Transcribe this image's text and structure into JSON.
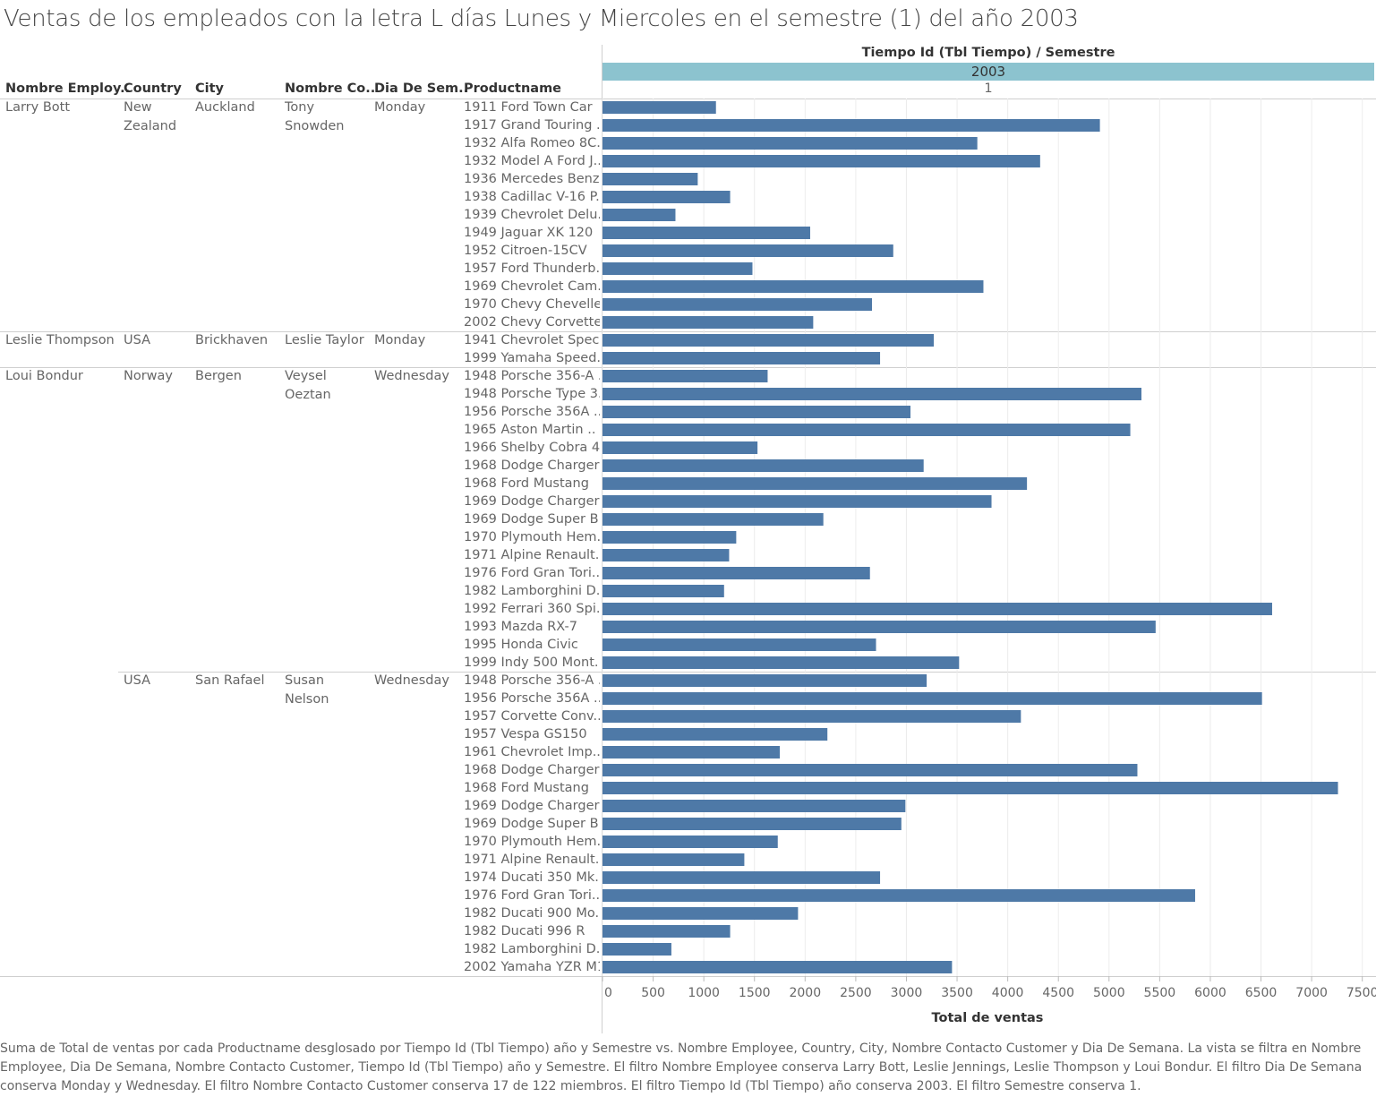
{
  "title": "Ventas de los empleados con la letra L días Lunes y Miercoles en el semestre (1) del año 2003",
  "headers": {
    "employee": "Nombre Employ..",
    "country": "Country",
    "city": "City",
    "contact": "Nombre Co..",
    "day": "Dia De Sem..",
    "product": "Productname",
    "column_field": "Tiempo Id (Tbl Tiempo)  /  Semestre",
    "year": "2003",
    "semester": "1"
  },
  "groups": [
    {
      "employee": "Larry Bott",
      "country": "New\nZealand",
      "city": "Auckland",
      "contact": "Tony\nSnowden",
      "day": "Monday"
    },
    {
      "employee": "Leslie Thompson",
      "country": "USA",
      "city": "Brickhaven",
      "contact": "Leslie Taylor",
      "day": "Monday"
    },
    {
      "employee": "Loui Bondur",
      "country": "Norway",
      "city": "Bergen",
      "contact": "Veysel\nOeztan",
      "day": "Wednesday"
    },
    {
      "employee": "",
      "country": "USA",
      "city": "San Rafael",
      "contact": "Susan\nNelson",
      "day": "Wednesday"
    }
  ],
  "chart_data": {
    "type": "bar",
    "orientation": "horizontal",
    "xlabel": "Total de ventas",
    "xlim": [
      0,
      7600
    ],
    "xticks": [
      0,
      500,
      1000,
      1500,
      2000,
      2500,
      3000,
      3500,
      4000,
      4500,
      5000,
      5500,
      6000,
      6500,
      7000,
      7500
    ],
    "grid": true,
    "bar_color": "#4e79a7",
    "categories": [
      "1911 Ford Town Car",
      "1917 Grand Touring ..",
      "1932 Alfa Romeo 8C..",
      "1932 Model A Ford J..",
      "1936 Mercedes Benz..",
      "1938 Cadillac V-16 P..",
      "1939 Chevrolet Delu..",
      "1949 Jaguar XK 120",
      "1952 Citroen-15CV",
      "1957 Ford Thunderb..",
      "1969 Chevrolet Cam..",
      "1970 Chevy Chevelle..",
      "2002 Chevy Corvette",
      "1941 Chevrolet Spec..",
      "1999 Yamaha Speed..",
      "1948 Porsche 356-A ..",
      "1948 Porsche Type 3..",
      "1956 Porsche 356A ..",
      "1965 Aston Martin ..",
      "1966 Shelby Cobra 4..",
      "1968 Dodge Charger",
      "1968 Ford Mustang",
      "1969 Dodge Charger",
      "1969 Dodge Super B..",
      "1970 Plymouth Hem..",
      "1971 Alpine Renault..",
      "1976 Ford Gran Tori..",
      "1982 Lamborghini D..",
      "1992 Ferrari 360 Spi..",
      "1993 Mazda RX-7",
      "1995 Honda Civic",
      "1999 Indy 500 Mont..",
      "1948 Porsche 356-A ..",
      "1956 Porsche 356A ..",
      "1957 Corvette Conv..",
      "1957 Vespa GS150",
      "1961 Chevrolet Imp..",
      "1968 Dodge Charger",
      "1968 Ford Mustang",
      "1969 Dodge Charger",
      "1969 Dodge Super B..",
      "1970 Plymouth Hem..",
      "1971 Alpine Renault..",
      "1974 Ducati 350 Mk..",
      "1976 Ford Gran Tori..",
      "1982 Ducati 900 Mo..",
      "1982 Ducati 996 R",
      "1982 Lamborghini D..",
      "2002 Yamaha YZR M1"
    ],
    "values": [
      1120,
      4910,
      3700,
      4320,
      940,
      1260,
      720,
      2050,
      2870,
      1480,
      3760,
      2660,
      2080,
      3270,
      2740,
      1630,
      5320,
      3040,
      5210,
      1530,
      3170,
      4190,
      3840,
      2180,
      1320,
      1250,
      2640,
      1200,
      6610,
      5460,
      2700,
      3520,
      3200,
      6510,
      4130,
      2220,
      1750,
      5280,
      7260,
      2990,
      2950,
      1730,
      1400,
      2740,
      5850,
      1930,
      1260,
      680,
      3450
    ],
    "group_sizes": [
      13,
      2,
      17,
      17
    ]
  },
  "footnote": "Suma de Total de ventas por cada Productname desglosado por Tiempo Id (Tbl Tiempo) año y Semestre vs. Nombre Employee, Country, City, Nombre Contacto Customer y Dia De Semana.  La vista se filtra en Nombre Employee, Dia De Semana, Nombre Contacto Customer, Tiempo Id (Tbl Tiempo) año y Semestre. El filtro Nombre Employee conserva Larry Bott, Leslie Jennings, Leslie Thompson y Loui Bondur. El filtro Dia De Semana conserva Monday y Wednesday. El filtro Nombre Contacto Customer conserva 17 de 122 miembros. El filtro Tiempo Id (Tbl Tiempo) año conserva 2003. El filtro Semestre conserva 1."
}
